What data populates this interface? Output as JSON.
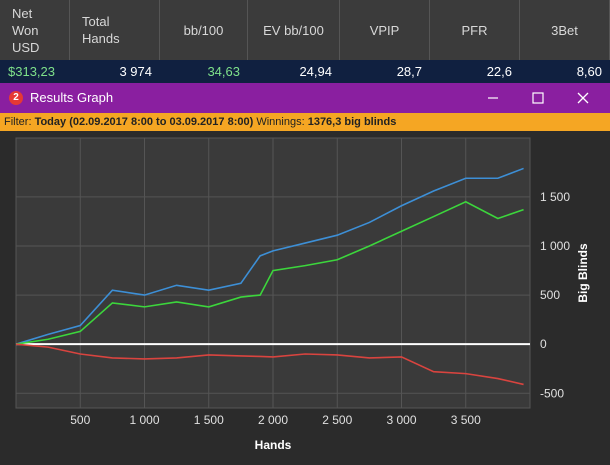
{
  "table": {
    "headers": [
      "Net Won USD",
      "Total Hands",
      "bb/100",
      "EV bb/100",
      "VPIP",
      "PFR",
      "3Bet"
    ],
    "rows": [
      [
        "$313,23",
        "3 974",
        "34,63",
        "24,94",
        "28,7",
        "22,6",
        "8,60"
      ]
    ]
  },
  "window": {
    "icon": "2",
    "title": "Results Graph"
  },
  "filter": {
    "label": "Filter:",
    "value": "Today (02.09.2017 8:00 to 03.09.2017 8:00)",
    "winnings_label": "Winnings:",
    "winnings_value": "1376,3 big blinds"
  },
  "graph": {
    "type": "line",
    "x": [
      0,
      250,
      500,
      750,
      1000,
      1250,
      1500,
      1750,
      1900,
      2000,
      2250,
      2500,
      2750,
      3000,
      3250,
      3500,
      3750,
      3950
    ],
    "series": [
      {
        "color": "#3d8fd6",
        "values": [
          0,
          100,
          190,
          550,
          500,
          600,
          550,
          620,
          900,
          950,
          1030,
          1110,
          1240,
          1410,
          1560,
          1690,
          1690,
          1790
        ]
      },
      {
        "color": "#3cd63c",
        "values": [
          0,
          50,
          130,
          420,
          380,
          430,
          380,
          480,
          500,
          750,
          800,
          860,
          1000,
          1150,
          1300,
          1450,
          1280,
          1370
        ]
      },
      {
        "color": "#d9443f",
        "values": [
          0,
          -30,
          -100,
          -140,
          -150,
          -140,
          -110,
          -120,
          -125,
          -130,
          -100,
          -110,
          -140,
          -130,
          -280,
          -300,
          -350,
          -410
        ]
      }
    ],
    "xlim": [
      0,
      4000
    ],
    "ylim": [
      -650,
      2100
    ],
    "xticks": [
      500,
      {
        "value": 1000,
        "label": "1 000"
      },
      {
        "value": 1500,
        "label": "1 500"
      },
      {
        "value": 2000,
        "label": "2 000"
      },
      {
        "value": 2500,
        "label": "2 500"
      },
      {
        "value": 3000,
        "label": "3 000"
      },
      {
        "value": 3500,
        "label": "3 500"
      }
    ],
    "yticks": [
      -500,
      0,
      500,
      {
        "value": 1000,
        "label": "1 000"
      },
      {
        "value": 1500,
        "label": "1 500"
      }
    ],
    "xlabel": "Hands",
    "ylabel": "Big Blinds",
    "grid": true
  }
}
